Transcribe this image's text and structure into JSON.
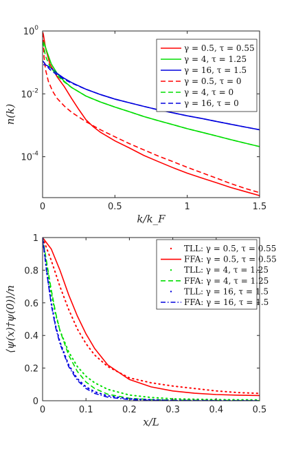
{
  "chart_data": [
    {
      "type": "line",
      "xlabel": "k/k_F",
      "ylabel": "n(k)",
      "xlim": [
        0,
        1.5
      ],
      "ylim": [
        5e-06,
        1
      ],
      "yscale": "log",
      "xticks": [
        "0",
        "0.5",
        "1",
        "1.5"
      ],
      "yticks": [
        {
          "base": "10",
          "exp": "0",
          "value": 1
        },
        {
          "base": "10",
          "exp": "-2",
          "value": 0.01
        },
        {
          "base": "10",
          "exp": "-4",
          "value": 0.0001
        }
      ],
      "legend_position": "top-right",
      "series": [
        {
          "name": "γ = 0.5, τ = 0.55",
          "color": "#ff0000",
          "dash": "solid",
          "x": [
            0.005,
            0.02,
            0.05,
            0.1,
            0.15,
            0.2,
            0.25,
            0.3,
            0.35,
            0.4,
            0.5,
            0.6,
            0.7,
            0.8,
            0.9,
            1.0,
            1.1,
            1.2,
            1.3,
            1.4,
            1.5
          ],
          "y": [
            0.8,
            0.3,
            0.09,
            0.035,
            0.017,
            0.0072,
            0.0032,
            0.0015,
            0.0009,
            0.0006,
            0.00032,
            0.00019,
            0.00011,
            7e-05,
            4.5e-05,
            3e-05,
            2.1e-05,
            1.5e-05,
            1.05e-05,
            7.8e-06,
            5.8e-06
          ]
        },
        {
          "name": "γ = 4, τ = 1.25",
          "color": "#00dd00",
          "dash": "solid",
          "x": [
            0.005,
            0.03,
            0.06,
            0.1,
            0.15,
            0.2,
            0.3,
            0.4,
            0.5,
            0.6,
            0.7,
            0.8,
            0.9,
            1.0,
            1.1,
            1.2,
            1.3,
            1.4,
            1.5
          ],
          "y": [
            0.5,
            0.22,
            0.09,
            0.045,
            0.025,
            0.016,
            0.0085,
            0.0055,
            0.0038,
            0.0027,
            0.0019,
            0.0014,
            0.00105,
            0.00078,
            0.0006,
            0.00046,
            0.00035,
            0.00027,
            0.00021
          ]
        },
        {
          "name": "γ = 16, τ = 1.5",
          "color": "#0000dd",
          "dash": "solid",
          "x": [
            0.005,
            0.03,
            0.06,
            0.1,
            0.15,
            0.2,
            0.3,
            0.4,
            0.5,
            0.6,
            0.7,
            0.8,
            0.9,
            1.0,
            1.1,
            1.2,
            1.3,
            1.4,
            1.5
          ],
          "y": [
            0.085,
            0.08,
            0.065,
            0.045,
            0.031,
            0.023,
            0.014,
            0.0095,
            0.0068,
            0.0052,
            0.004,
            0.0031,
            0.0025,
            0.002,
            0.00165,
            0.00133,
            0.00108,
            0.00088,
            0.00072
          ]
        },
        {
          "name": "γ = 0.5, τ = 0",
          "color": "#ff0000",
          "dash": "dashed",
          "x": [
            0.003,
            0.01,
            0.02,
            0.04,
            0.07,
            0.1,
            0.15,
            0.2,
            0.3,
            0.4,
            0.5,
            0.6,
            0.7,
            0.8,
            0.9,
            1.0,
            1.1,
            1.2,
            1.3,
            1.4,
            1.5
          ],
          "y": [
            0.9,
            0.15,
            0.06,
            0.025,
            0.012,
            0.0072,
            0.0041,
            0.0026,
            0.0013,
            0.00072,
            0.00043,
            0.00026,
            0.000165,
            0.000105,
            7e-05,
            4.6e-05,
            3.1e-05,
            2.1e-05,
            1.4e-05,
            9.8e-06,
            7.2e-06
          ]
        },
        {
          "name": "γ = 4, τ = 0",
          "color": "#00dd00",
          "dash": "dashed",
          "x": [
            0.003,
            0.02,
            0.05,
            0.1,
            0.15,
            0.2,
            0.3,
            0.4,
            0.5,
            0.6,
            0.7,
            0.8,
            0.9,
            1.0,
            1.1,
            1.2,
            1.3,
            1.4,
            1.5
          ],
          "y": [
            0.45,
            0.16,
            0.075,
            0.038,
            0.024,
            0.016,
            0.0085,
            0.0055,
            0.0038,
            0.0027,
            0.0019,
            0.0014,
            0.00105,
            0.00078,
            0.0006,
            0.00046,
            0.00035,
            0.00027,
            0.00021
          ]
        },
        {
          "name": "γ = 16, τ = 0",
          "color": "#0000dd",
          "dash": "dashed",
          "x": [
            0.003,
            0.02,
            0.05,
            0.1,
            0.15,
            0.2,
            0.3,
            0.4,
            0.5,
            0.6,
            0.7,
            0.8,
            0.9,
            1.0,
            1.1,
            1.2,
            1.3,
            1.4,
            1.5
          ],
          "y": [
            0.11,
            0.085,
            0.06,
            0.04,
            0.029,
            0.022,
            0.014,
            0.0095,
            0.0068,
            0.0052,
            0.004,
            0.0031,
            0.0025,
            0.002,
            0.00165,
            0.00133,
            0.00108,
            0.00088,
            0.00072
          ]
        }
      ]
    },
    {
      "type": "line",
      "xlabel": "x/L",
      "ylabel": "⟨ψ(x)†ψ(0)⟩/n",
      "xlim": [
        0,
        0.5
      ],
      "ylim": [
        0,
        1
      ],
      "yscale": "linear",
      "xticks": [
        "0",
        "0.1",
        "0.2",
        "0.3",
        "0.4",
        "0.5"
      ],
      "yticks": [
        "0",
        "0.2",
        "0.4",
        "0.6",
        "0.8",
        "1"
      ],
      "legend_position": "top-right",
      "series": [
        {
          "name": "TLL: γ = 0.5, τ = 0.55",
          "color": "#ff0000",
          "dash": "dotted",
          "x": [
            0,
            0.02,
            0.04,
            0.06,
            0.08,
            0.1,
            0.12,
            0.15,
            0.2,
            0.25,
            0.3,
            0.35,
            0.4,
            0.45,
            0.5
          ],
          "y": [
            1.0,
            0.86,
            0.7,
            0.56,
            0.44,
            0.35,
            0.28,
            0.21,
            0.14,
            0.11,
            0.09,
            0.075,
            0.06,
            0.05,
            0.045
          ]
        },
        {
          "name": "FFA: γ = 0.5, τ = 0.55",
          "color": "#ff0000",
          "dash": "solid",
          "x": [
            0,
            0.02,
            0.04,
            0.06,
            0.08,
            0.1,
            0.12,
            0.15,
            0.2,
            0.25,
            0.3,
            0.35,
            0.4,
            0.45,
            0.5
          ],
          "y": [
            1.0,
            0.93,
            0.8,
            0.65,
            0.52,
            0.41,
            0.32,
            0.22,
            0.13,
            0.085,
            0.06,
            0.046,
            0.038,
            0.034,
            0.032
          ]
        },
        {
          "name": "TLL: γ = 4, τ = 1.25",
          "color": "#00dd00",
          "dash": "dotted",
          "x": [
            0,
            0.01,
            0.02,
            0.03,
            0.04,
            0.06,
            0.08,
            0.1,
            0.12,
            0.15,
            0.2,
            0.25,
            0.3,
            0.4,
            0.5
          ],
          "y": [
            1.0,
            0.82,
            0.66,
            0.53,
            0.43,
            0.3,
            0.21,
            0.15,
            0.11,
            0.07,
            0.035,
            0.02,
            0.012,
            0.007,
            0.005
          ]
        },
        {
          "name": "FFA: γ = 4, τ = 1.25",
          "color": "#00dd00",
          "dash": "dashed",
          "x": [
            0,
            0.01,
            0.02,
            0.03,
            0.04,
            0.06,
            0.08,
            0.1,
            0.12,
            0.15,
            0.2,
            0.25,
            0.3,
            0.4,
            0.5
          ],
          "y": [
            1.0,
            0.84,
            0.68,
            0.54,
            0.43,
            0.28,
            0.18,
            0.115,
            0.075,
            0.04,
            0.015,
            0.007,
            0.004,
            0.002,
            0.001
          ]
        },
        {
          "name": "TLL: γ = 16, τ = 1.5",
          "color": "#0000dd",
          "dash": "dotted",
          "x": [
            0,
            0.01,
            0.02,
            0.03,
            0.04,
            0.06,
            0.08,
            0.1,
            0.12,
            0.15,
            0.2,
            0.25,
            0.3,
            0.4,
            0.5
          ],
          "y": [
            1.0,
            0.78,
            0.6,
            0.46,
            0.36,
            0.22,
            0.135,
            0.085,
            0.055,
            0.03,
            0.012,
            0.006,
            0.003,
            0.001,
            0.0
          ]
        },
        {
          "name": "FFA: γ = 16, τ = 1.5",
          "color": "#0000dd",
          "dash": "dashdot",
          "x": [
            0,
            0.01,
            0.02,
            0.03,
            0.04,
            0.06,
            0.08,
            0.1,
            0.12,
            0.15,
            0.2,
            0.25,
            0.3,
            0.4,
            0.5
          ],
          "y": [
            1.0,
            0.78,
            0.59,
            0.45,
            0.35,
            0.21,
            0.125,
            0.075,
            0.045,
            0.022,
            0.007,
            0.002,
            0.001,
            0.0,
            0.0
          ]
        }
      ]
    }
  ]
}
